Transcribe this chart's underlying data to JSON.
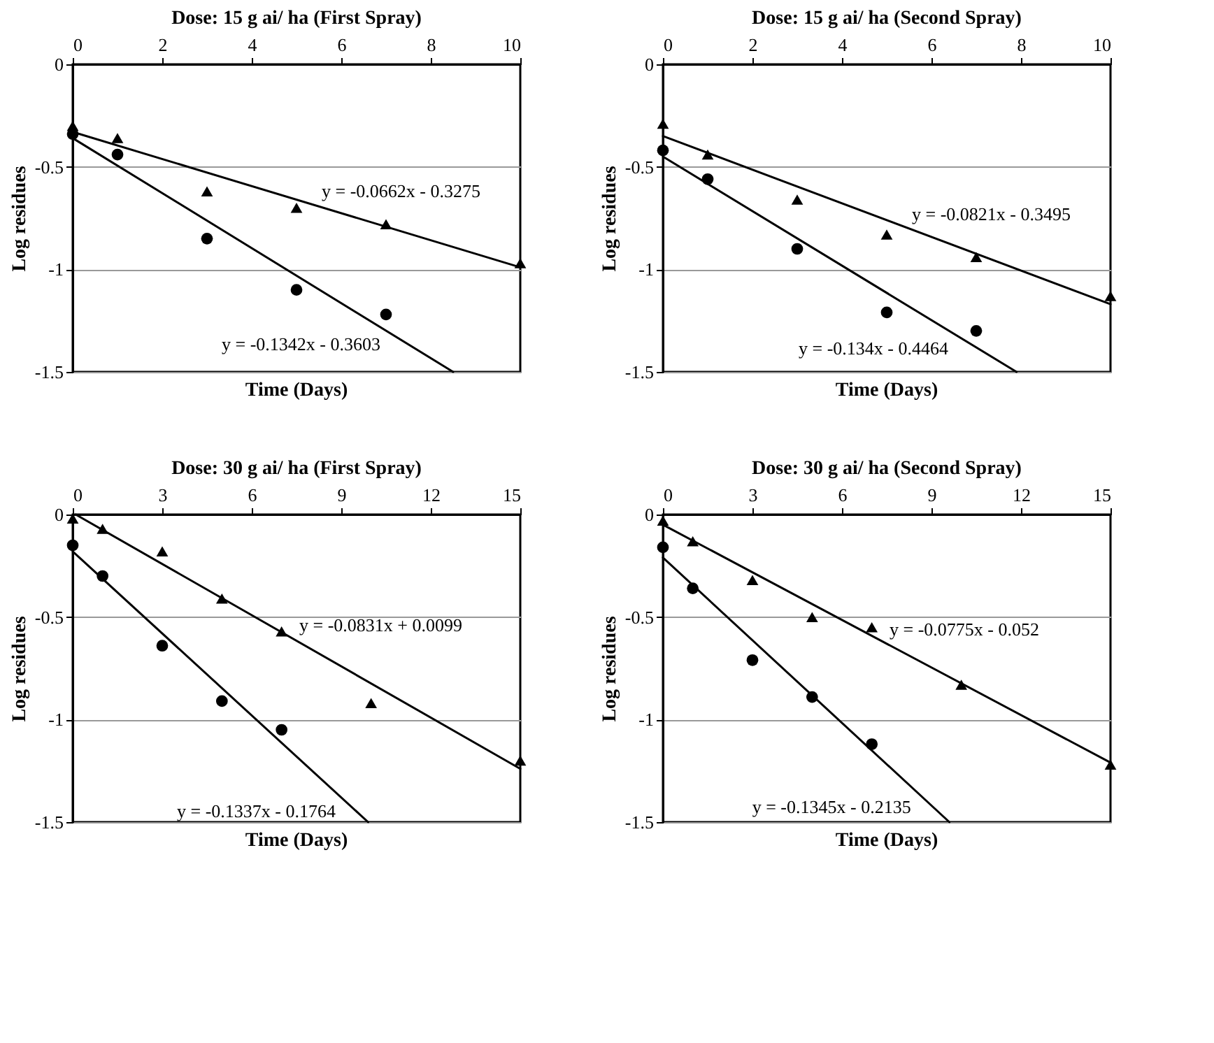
{
  "chart_data": [
    {
      "type": "scatter",
      "title": "Dose: 15 g ai/ ha (First Spray)",
      "xlabel": "Time (Days)",
      "ylabel": "Log residues",
      "xlim": [
        0,
        10
      ],
      "xticks": [
        0,
        2,
        4,
        6,
        8,
        10
      ],
      "ylim": [
        -1.5,
        0
      ],
      "yticks": [
        -1.5,
        -1,
        -0.5,
        0
      ],
      "grid": "y",
      "series": [
        {
          "marker": "triangle",
          "color": "#000000",
          "x": [
            0,
            1,
            3,
            5,
            7,
            10
          ],
          "values": [
            -0.3,
            -0.36,
            -0.62,
            -0.7,
            -0.78,
            -0.97
          ]
        },
        {
          "marker": "circle",
          "color": "#000000",
          "x": [
            0,
            1,
            3,
            5,
            7
          ],
          "values": [
            -0.34,
            -0.44,
            -0.85,
            -1.1,
            -1.22
          ]
        },
        {
          "type": "line",
          "color": "#000000",
          "x": [
            0,
            10
          ],
          "values": [
            -0.33,
            -0.99
          ]
        },
        {
          "type": "line",
          "color": "#000000",
          "x": [
            0,
            8.5
          ],
          "values": [
            -0.36,
            -1.5
          ]
        }
      ],
      "annotations": [
        {
          "text": "y = -0.0662x - 0.3275",
          "x": 5.5,
          "y": -0.69
        },
        {
          "text": "y = -0.1342x - 0.3603",
          "x": 7,
          "y": -1.3
        }
      ]
    },
    {
      "type": "scatter",
      "title": "Dose: 15 g ai/ ha (Second Spray)",
      "xlabel": "Time (Days)",
      "ylabel": "Log residues",
      "xlim": [
        0,
        10
      ],
      "xticks": [
        0,
        2,
        4,
        6,
        8,
        10
      ],
      "ylim": [
        -1.5,
        0
      ],
      "yticks": [
        -1.5,
        -1,
        -0.5,
        0
      ],
      "grid": "y",
      "series": [
        {
          "marker": "triangle",
          "color": "#000000",
          "x": [
            0,
            1,
            3,
            5,
            7,
            10
          ],
          "values": [
            -0.29,
            -0.44,
            -0.66,
            -0.83,
            -0.94,
            -1.13
          ]
        },
        {
          "marker": "circle",
          "color": "#000000",
          "x": [
            0,
            1,
            3,
            5,
            7
          ],
          "values": [
            -0.42,
            -0.56,
            -0.9,
            -1.21,
            -1.3
          ]
        },
        {
          "type": "line",
          "color": "#000000",
          "x": [
            0,
            10
          ],
          "values": [
            -0.35,
            -1.17
          ]
        },
        {
          "type": "line",
          "color": "#000000",
          "x": [
            0,
            7.9
          ],
          "values": [
            -0.45,
            -1.5
          ]
        }
      ],
      "annotations": [
        {
          "text": "y = -0.0821x - 0.3495",
          "x": 5.5,
          "y": -0.8
        },
        {
          "text": "y = -0.134x - 0.4464",
          "x": 6.5,
          "y": -1.32
        }
      ]
    },
    {
      "type": "scatter",
      "title": "Dose: 30 g ai/ ha (First Spray)",
      "xlabel": "Time (Days)",
      "ylabel": "Log residues",
      "xlim": [
        0,
        15
      ],
      "xticks": [
        0,
        3,
        6,
        9,
        12,
        15
      ],
      "ylim": [
        -1.5,
        0
      ],
      "yticks": [
        -1.5,
        -1,
        -0.5,
        0
      ],
      "grid": "y",
      "series": [
        {
          "marker": "triangle",
          "color": "#000000",
          "x": [
            0,
            1,
            3,
            5,
            7,
            10,
            15
          ],
          "values": [
            -0.02,
            -0.07,
            -0.18,
            -0.41,
            -0.57,
            -0.92,
            -1.2
          ]
        },
        {
          "marker": "circle",
          "color": "#000000",
          "x": [
            0,
            1,
            3,
            5,
            7
          ],
          "values": [
            -0.15,
            -0.3,
            -0.64,
            -0.91,
            -1.05
          ]
        },
        {
          "type": "line",
          "color": "#000000",
          "x": [
            0.1,
            15
          ],
          "values": [
            0,
            -1.24
          ]
        },
        {
          "type": "line",
          "color": "#000000",
          "x": [
            0,
            9.9
          ],
          "values": [
            -0.18,
            -1.5
          ]
        }
      ],
      "annotations": [
        {
          "text": "y = -0.0831x + 0.0099",
          "x": 7.5,
          "y": -0.61
        },
        {
          "text": "y = -0.1337x - 0.1764",
          "x": 9,
          "y": -1.38
        }
      ]
    },
    {
      "type": "scatter",
      "title": "Dose: 30 g ai/ ha (Second Spray)",
      "xlabel": "Time (Days)",
      "ylabel": "Log residues",
      "xlim": [
        0,
        15
      ],
      "xticks": [
        0,
        3,
        6,
        9,
        12,
        15
      ],
      "ylim": [
        -1.5,
        0
      ],
      "yticks": [
        -1.5,
        -1,
        -0.5,
        0
      ],
      "grid": "y",
      "series": [
        {
          "marker": "triangle",
          "color": "#000000",
          "x": [
            0,
            1,
            3,
            5,
            7,
            10,
            15
          ],
          "values": [
            -0.03,
            -0.13,
            -0.32,
            -0.5,
            -0.55,
            -0.83,
            -1.22
          ]
        },
        {
          "marker": "circle",
          "color": "#000000",
          "x": [
            0,
            1,
            3,
            5,
            7
          ],
          "values": [
            -0.16,
            -0.36,
            -0.71,
            -0.89,
            -1.12
          ]
        },
        {
          "type": "line",
          "color": "#000000",
          "x": [
            0,
            15
          ],
          "values": [
            -0.05,
            -1.21
          ]
        },
        {
          "type": "line",
          "color": "#000000",
          "x": [
            0,
            9.6
          ],
          "values": [
            -0.21,
            -1.5
          ]
        }
      ],
      "annotations": [
        {
          "text": "y = -0.0775x - 0.052",
          "x": 7.5,
          "y": -0.63
        },
        {
          "text": "y = -0.1345x - 0.2135",
          "x": 8.5,
          "y": -1.36
        }
      ]
    }
  ]
}
